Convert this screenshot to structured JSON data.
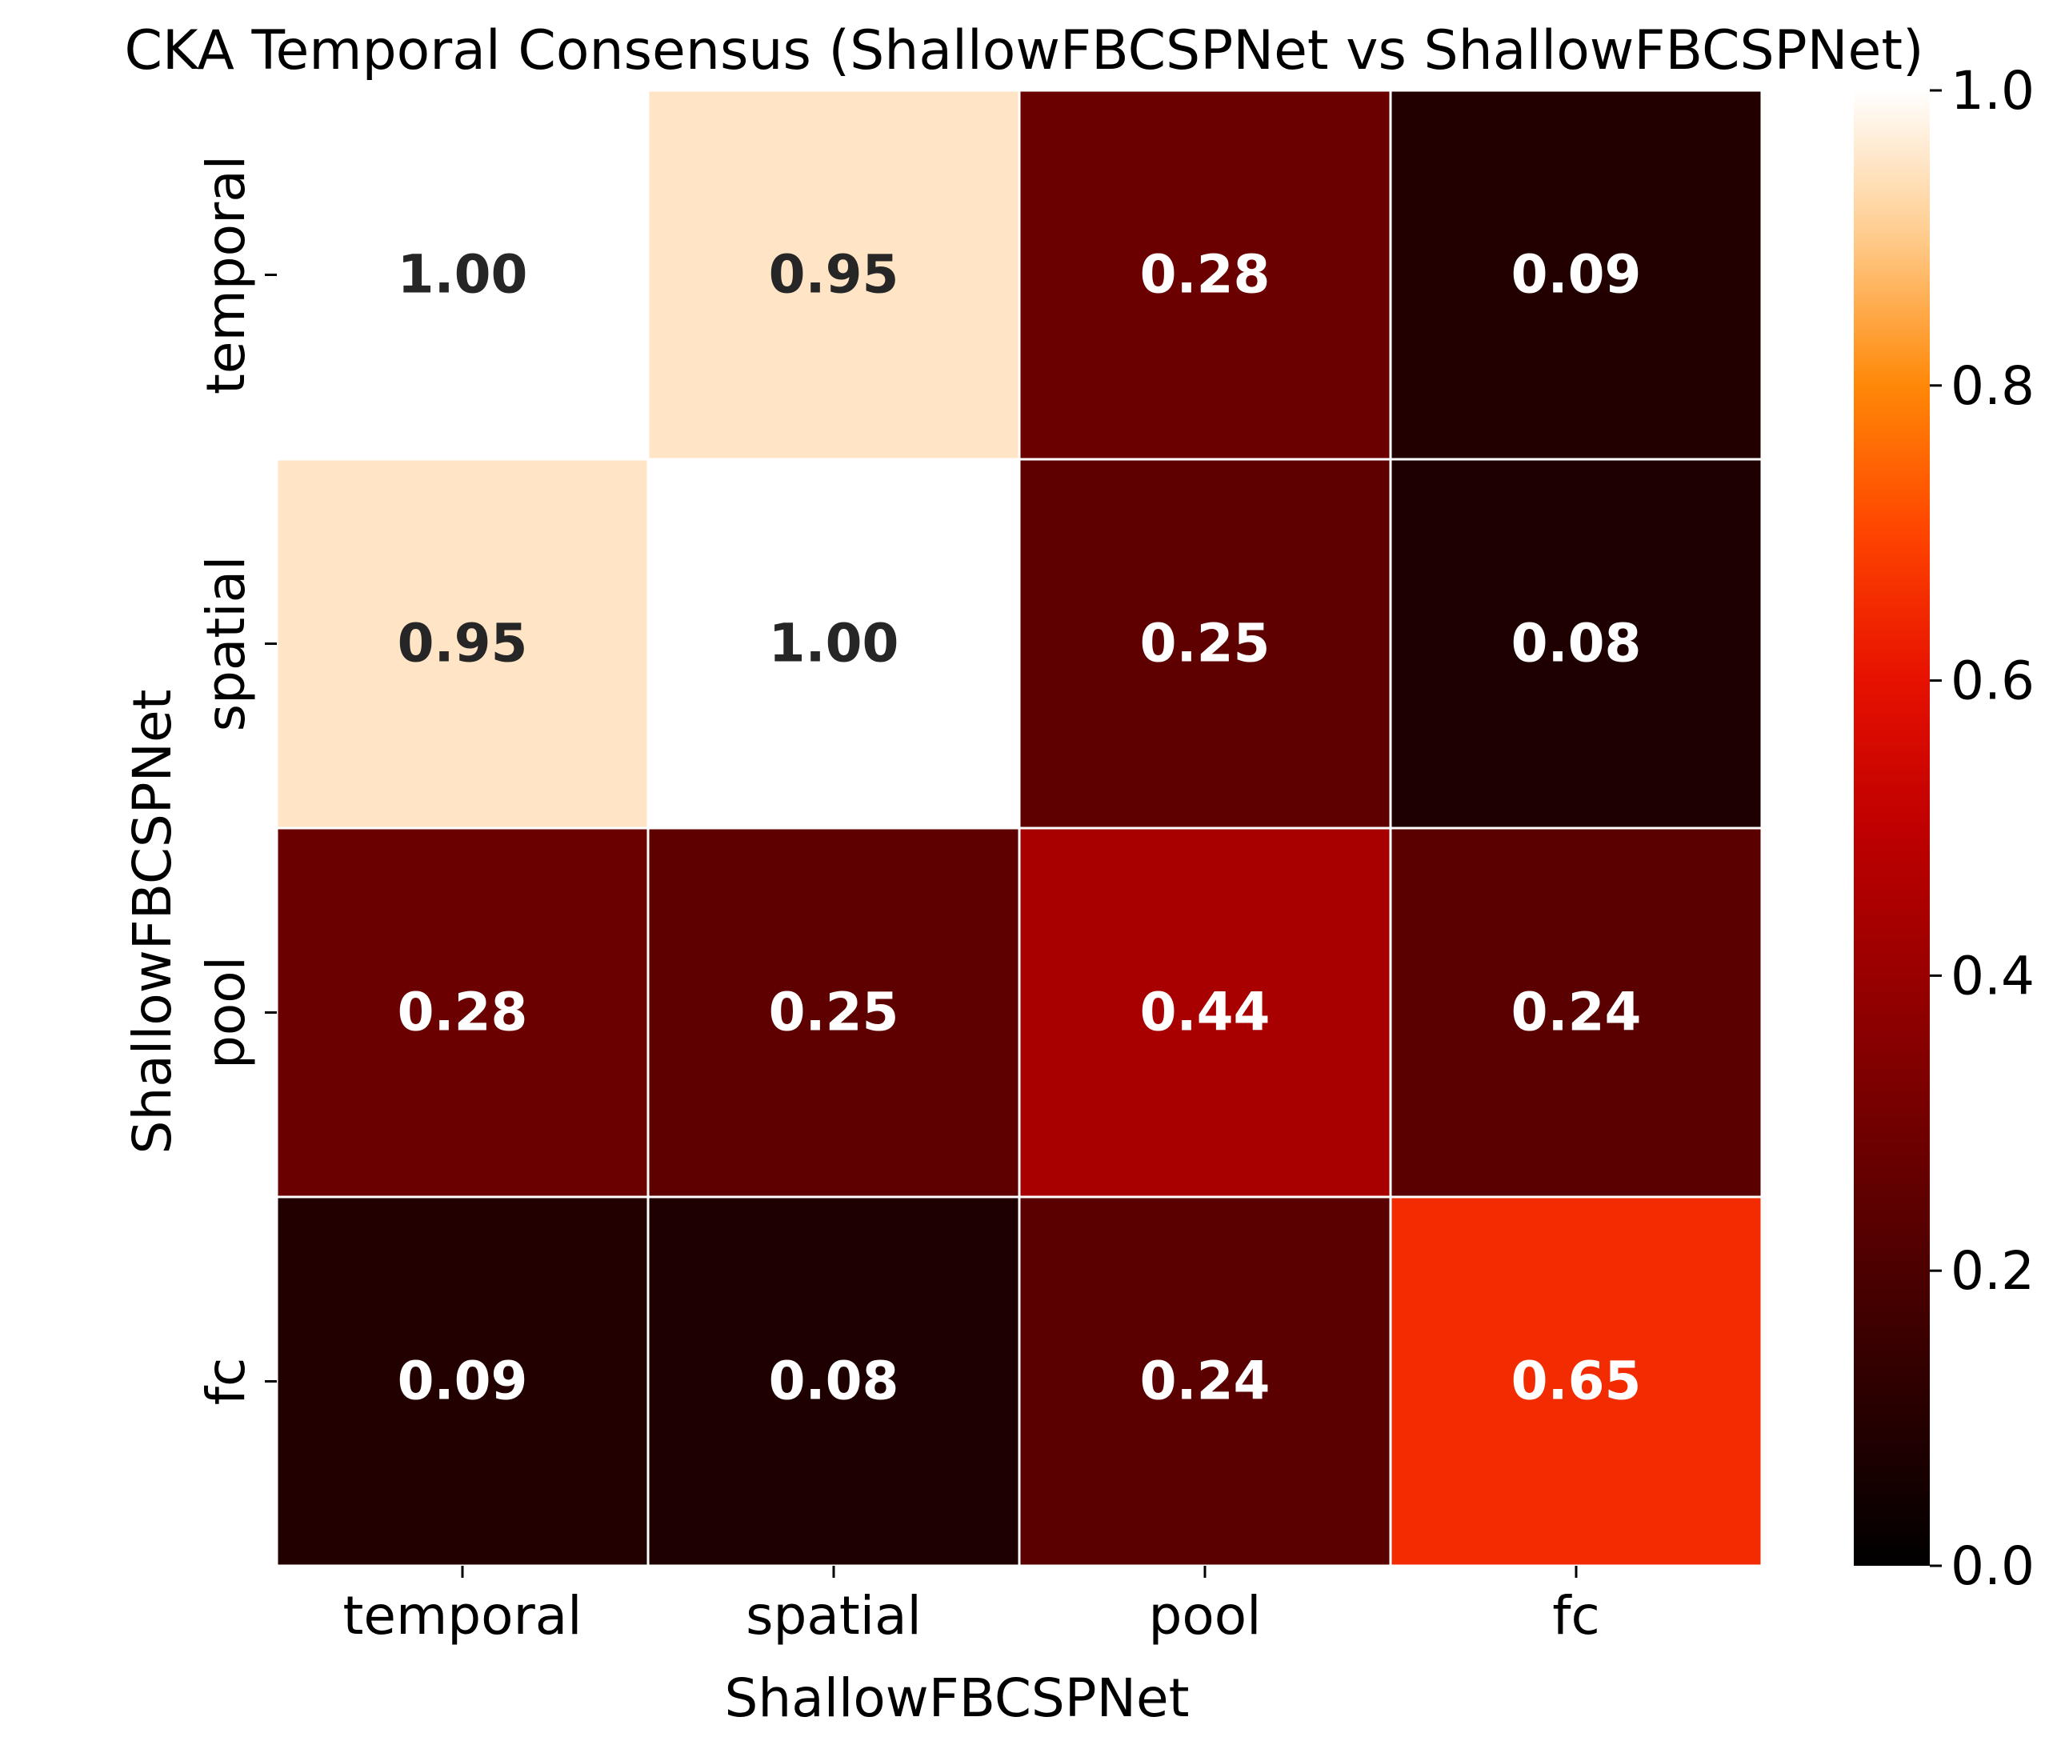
{
  "chart_data": {
    "type": "heatmap",
    "title": "CKA Temporal Consensus (ShallowFBCSPNet vs ShallowFBCSPNet)",
    "xlabel": "ShallowFBCSPNet",
    "ylabel": "ShallowFBCSPNet",
    "x_categories": [
      "temporal",
      "spatial",
      "pool",
      "fc"
    ],
    "y_categories": [
      "temporal",
      "spatial",
      "pool",
      "fc"
    ],
    "values": [
      [
        1.0,
        0.95,
        0.28,
        0.09
      ],
      [
        0.95,
        1.0,
        0.25,
        0.08
      ],
      [
        0.28,
        0.25,
        0.44,
        0.24
      ],
      [
        0.09,
        0.08,
        0.24,
        0.65
      ]
    ],
    "value_labels": [
      [
        "1.00",
        "0.95",
        "0.28",
        "0.09"
      ],
      [
        "0.95",
        "1.00",
        "0.25",
        "0.08"
      ],
      [
        "0.28",
        "0.25",
        "0.44",
        "0.24"
      ],
      [
        "0.09",
        "0.08",
        "0.24",
        "0.65"
      ]
    ],
    "colorbar": {
      "range": [
        0,
        1
      ],
      "ticks": [
        0.0,
        0.2,
        0.4,
        0.6,
        0.8,
        1.0
      ],
      "tick_labels": [
        "0.0",
        "0.2",
        "0.4",
        "0.6",
        "0.8",
        "1.0"
      ],
      "colormap": "gist_heat"
    }
  }
}
